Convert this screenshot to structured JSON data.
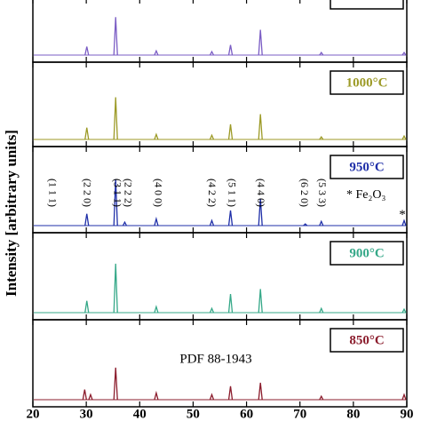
{
  "chart_data": {
    "type": "spectrum",
    "ylabel": "Intensity [arbitrary units]",
    "xlim": [
      20,
      90
    ],
    "xticks": [
      20,
      30,
      40,
      50,
      60,
      70,
      80,
      90
    ],
    "ylim": [
      0,
      100
    ],
    "series": [
      {
        "color": "#7a5cc4",
        "x": [
          30.1,
          35.5,
          43.1,
          53.5,
          57.0,
          62.6,
          74.0,
          89.5
        ],
        "values": [
          10,
          45,
          5,
          4,
          12,
          30,
          3,
          3
        ]
      },
      {
        "name": "1000°C",
        "color": "#9c9a26",
        "x": [
          30.1,
          35.5,
          43.1,
          53.5,
          57.0,
          62.6,
          74.0,
          89.5
        ],
        "values": [
          14,
          50,
          6,
          5,
          18,
          30,
          3,
          4
        ]
      },
      {
        "name": "950°C",
        "color": "#1f2fa8",
        "x": [
          30.1,
          35.5,
          37.2,
          43.1,
          53.5,
          57.0,
          62.6,
          71.0,
          74.0,
          89.5
        ],
        "values": [
          14,
          55,
          4,
          8,
          6,
          18,
          32,
          2,
          5,
          6
        ]
      },
      {
        "name": "900°C",
        "color": "#35a888",
        "x": [
          30.1,
          35.5,
          43.1,
          53.5,
          57.0,
          62.6,
          74.0,
          89.5
        ],
        "values": [
          14,
          58,
          7,
          5,
          22,
          28,
          5,
          4
        ]
      },
      {
        "name": "850°C",
        "color": "#8b1c2c",
        "x": [
          29.7,
          30.8,
          35.5,
          43.1,
          53.5,
          57.0,
          62.6,
          74.0,
          89.5
        ],
        "values": [
          12,
          6,
          38,
          8,
          6,
          16,
          20,
          4,
          6
        ]
      }
    ],
    "annotations": [
      {
        "series": 2,
        "x": 23.5,
        "text": "(1 1 1)"
      },
      {
        "series": 2,
        "x": 30.0,
        "text": "(2 2 0)"
      },
      {
        "series": 2,
        "x": 35.7,
        "text": "(3 1 1)"
      },
      {
        "series": 2,
        "x": 37.7,
        "text": "(2 2 2)"
      },
      {
        "series": 2,
        "x": 43.3,
        "text": "(4 0 0)"
      },
      {
        "series": 2,
        "x": 53.4,
        "text": "(4 2 2)"
      },
      {
        "series": 2,
        "x": 57.1,
        "text": "(5 1 1)"
      },
      {
        "series": 2,
        "x": 62.5,
        "text": "(4 4 0)"
      },
      {
        "series": 2,
        "x": 70.7,
        "text": "(6 2 0)"
      },
      {
        "series": 2,
        "x": 74.0,
        "text": "(5 3 3)"
      }
    ],
    "impurity_label": "* Fe₂O₃",
    "impurity_marker": {
      "series": 2,
      "x": 89.5,
      "text": "*"
    },
    "reference": {
      "series": 4,
      "text": "PDF 88-1943"
    }
  }
}
